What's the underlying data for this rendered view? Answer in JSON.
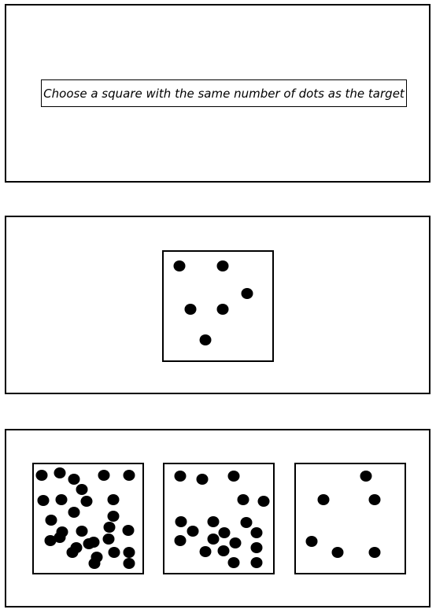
{
  "instruction": {
    "text": "Choose a square with the same number of dots as the target"
  },
  "dot_color": "#000000",
  "target": {
    "dot_count": 6
  },
  "choices": [
    {
      "dot_count": 29
    },
    {
      "dot_count": 19
    },
    {
      "dot_count": 6
    }
  ]
}
